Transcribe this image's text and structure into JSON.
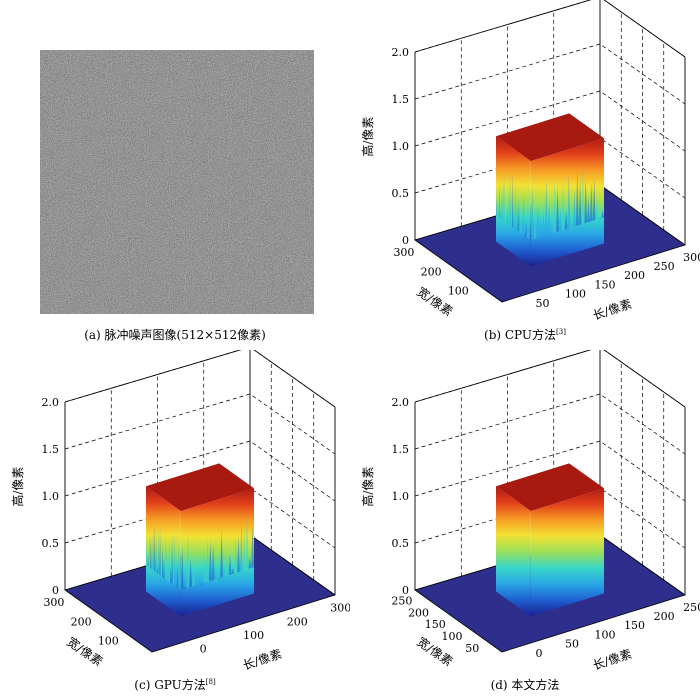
{
  "panels": [
    {
      "id": "a",
      "caption": "(a) 脉冲噪声图像(512×512像素)"
    },
    {
      "id": "b",
      "caption_main": "(b) CPU方法",
      "caption_ref": "[3]",
      "z_label": "高/像素",
      "x_label": "长/像素",
      "y_label": "宽/像素",
      "z_ticks": [
        "0",
        "0.5",
        "1.0",
        "1.5",
        "2.0"
      ],
      "x_ticks": [
        "50",
        "100",
        "150",
        "200",
        "250",
        "300"
      ],
      "y_ticks": [
        "100",
        "200",
        "300"
      ],
      "surface": "cpu"
    },
    {
      "id": "c",
      "caption_main": "(c) GPU方法",
      "caption_ref": "[8]",
      "z_label": "高/像素",
      "x_label": "长/像素",
      "y_label": "宽/像素",
      "z_ticks": [
        "0",
        "0.5",
        "1.0",
        "1.5",
        "2.0"
      ],
      "x_ticks": [
        "0",
        "100",
        "200",
        "300"
      ],
      "y_ticks": [
        "100",
        "200",
        "300"
      ],
      "surface": "gpu"
    },
    {
      "id": "d",
      "caption_main": "(d) 本文方法",
      "caption_ref": "",
      "z_label": "高/像素",
      "x_label": "长/像素",
      "y_label": "宽/像素",
      "z_ticks": [
        "0",
        "0.5",
        "1.0",
        "1.5",
        "2.0"
      ],
      "x_ticks": [
        "0",
        "50",
        "100",
        "150",
        "200",
        "250"
      ],
      "y_ticks": [
        "50",
        "100",
        "150",
        "200",
        "250"
      ],
      "surface": "smooth"
    }
  ],
  "colors": {
    "floor": "#2e2f8c",
    "top": "#a8190f",
    "jet": [
      "#1a2090",
      "#1f5fd0",
      "#29a6e6",
      "#38d6c8",
      "#9be05a",
      "#f2e234",
      "#f79a23",
      "#e2401b",
      "#b01a12"
    ]
  }
}
